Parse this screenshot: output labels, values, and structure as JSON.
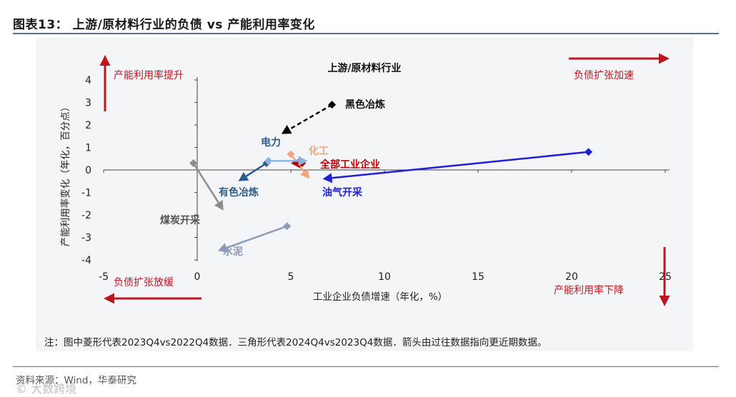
{
  "figure": {
    "title": "图表13：  上游/原材料行业的负债 vs 产能利用率变化",
    "note": "注：图中菱形代表2023Q4vs2022Q4数据．三角形代表2024Q4vs2023Q4数据．箭头由过往数据指向更近期数据。",
    "source": "资料来源：Wind，华泰研究",
    "watermark": "© 大数跨境"
  },
  "chart_data": {
    "type": "scatter",
    "title": "上游/原材料行业",
    "xlabel": "工业企业负债增速（年化，%）",
    "ylabel": "产能利用率变化（年化，百分点）",
    "xlim": [
      -5,
      25
    ],
    "ylim": [
      -4,
      4
    ],
    "xticks": [
      "-5",
      "0",
      "5",
      "10",
      "15",
      "20",
      "25"
    ],
    "yticks": [
      "4",
      "3",
      "2",
      "1",
      "0",
      "-1",
      "-2",
      "-3",
      "-4"
    ],
    "series": [
      {
        "name": "黑色冶炼",
        "color": "#000000",
        "dashed": true,
        "from": [
          7.2,
          2.9
        ],
        "to": [
          4.5,
          1.6
        ]
      },
      {
        "name": "电力",
        "color": "#2e5c8a",
        "from": [
          3.7,
          0.3
        ],
        "to": [
          2.2,
          -0.5
        ]
      },
      {
        "name": "化工",
        "color": "#f0a878",
        "from": [
          5.0,
          0.7
        ],
        "to": [
          6.0,
          -0.4
        ]
      },
      {
        "name": "全部工业企业",
        "color": "#c00000",
        "from": [
          5.6,
          0.3
        ],
        "to": [
          5.0,
          0.3
        ]
      },
      {
        "name": "油气开采",
        "color": "#1f1fd6",
        "from": [
          20.9,
          0.8
        ],
        "to": [
          6.7,
          -0.4
        ]
      },
      {
        "name": "有色冶炼",
        "color": "#8cb4e0",
        "from": [
          3.8,
          0.4
        ],
        "to": [
          5.9,
          0.4
        ]
      },
      {
        "name": "煤炭开采",
        "color": "#8c8c8c",
        "from": [
          -0.2,
          0.3
        ],
        "to": [
          1.4,
          -1.8
        ]
      },
      {
        "name": "水泥",
        "color": "#8a9cba",
        "from": [
          4.8,
          -2.5
        ],
        "to": [
          1.1,
          -3.6
        ]
      }
    ],
    "quadrant_labels": {
      "top_left": "产能利用率提升",
      "top_right": "负债扩张加速",
      "bottom_left": "负债扩张放缓",
      "bottom_right": "产能利用率下降"
    }
  }
}
